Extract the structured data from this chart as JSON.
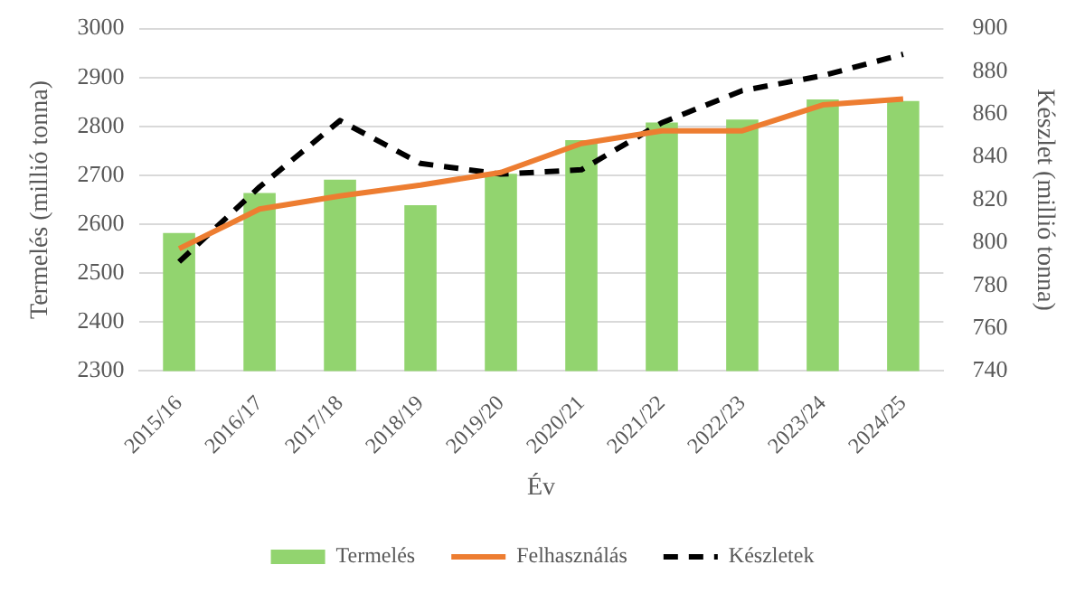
{
  "chart_data": {
    "type": "bar",
    "categories": [
      "2015/16",
      "2016/17",
      "2017/18",
      "2018/19",
      "2019/20",
      "2020/21",
      "2021/22",
      "2022/23",
      "2023/24",
      "2024/25"
    ],
    "series": [
      {
        "name": "Termelés",
        "color": "#92d46f",
        "values": [
          2582,
          2664,
          2691,
          2639,
          2703,
          2772,
          2808,
          2814,
          2855,
          2852
        ]
      },
      {
        "name": "Felhasználás",
        "type": "line",
        "color": "#ed7d31",
        "line_style": "solid",
        "values": [
          2550,
          2631,
          2658,
          2680,
          2706,
          2765,
          2791,
          2791,
          2844,
          2856
        ]
      },
      {
        "name": "Készletek",
        "type": "line",
        "axis": "y2",
        "color": "#000000",
        "line_style": "dashed",
        "values": [
          791,
          826,
          857,
          837,
          832,
          834,
          856,
          871,
          878,
          888
        ]
      }
    ],
    "xlabel": "Év",
    "ylabel": "Termelés (millió tonna)",
    "y2label": "Készlet (millió tonna)",
    "ylim": [
      2300,
      3000
    ],
    "yticks": [
      2300,
      2400,
      2500,
      2600,
      2700,
      2800,
      2900,
      3000
    ],
    "y2lim": [
      740,
      900
    ],
    "y2ticks": [
      740,
      760,
      780,
      800,
      820,
      840,
      860,
      880,
      900
    ],
    "grid": "y",
    "legend": "bottom",
    "marker": "none"
  }
}
